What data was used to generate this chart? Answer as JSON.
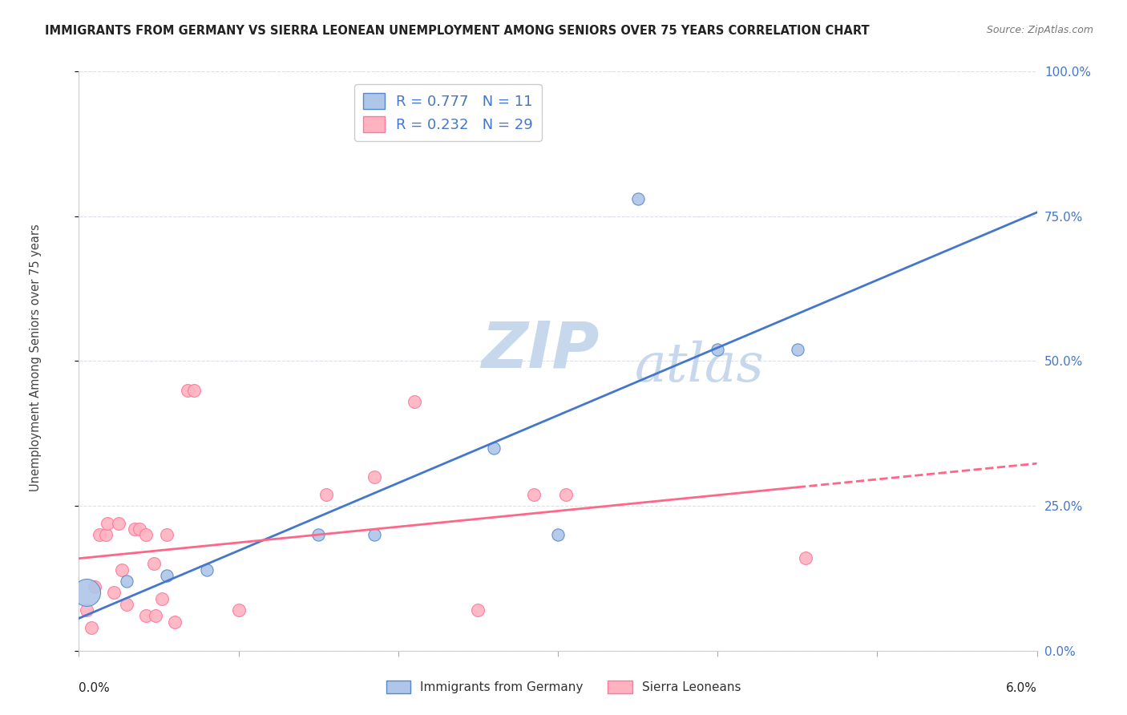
{
  "title": "IMMIGRANTS FROM GERMANY VS SIERRA LEONEAN UNEMPLOYMENT AMONG SENIORS OVER 75 YEARS CORRELATION CHART",
  "source": "Source: ZipAtlas.com",
  "ylabel": "Unemployment Among Seniors over 75 years",
  "xlim": [
    0.0,
    6.0
  ],
  "ylim": [
    0.0,
    100.0
  ],
  "yticks": [
    0.0,
    25.0,
    50.0,
    75.0,
    100.0
  ],
  "xticks": [
    0.0,
    1.0,
    2.0,
    3.0,
    4.0,
    5.0,
    6.0
  ],
  "blue_R": 0.777,
  "blue_N": 11,
  "pink_R": 0.232,
  "pink_N": 29,
  "blue_points": [
    [
      0.05,
      10.0,
      600
    ],
    [
      0.3,
      12.0,
      120
    ],
    [
      0.55,
      13.0,
      120
    ],
    [
      0.8,
      14.0,
      120
    ],
    [
      1.5,
      20.0,
      120
    ],
    [
      1.85,
      20.0,
      120
    ],
    [
      2.6,
      35.0,
      120
    ],
    [
      3.0,
      20.0,
      120
    ],
    [
      3.5,
      78.0,
      120
    ],
    [
      4.0,
      52.0,
      120
    ],
    [
      4.5,
      52.0,
      120
    ]
  ],
  "pink_points": [
    [
      0.05,
      7.0
    ],
    [
      0.08,
      4.0
    ],
    [
      0.1,
      11.0
    ],
    [
      0.13,
      20.0
    ],
    [
      0.17,
      20.0
    ],
    [
      0.22,
      10.0
    ],
    [
      0.27,
      14.0
    ],
    [
      0.3,
      8.0
    ],
    [
      0.35,
      21.0
    ],
    [
      0.38,
      21.0
    ],
    [
      0.42,
      6.0
    ],
    [
      0.48,
      6.0
    ],
    [
      0.55,
      20.0
    ],
    [
      0.6,
      5.0
    ],
    [
      0.68,
      45.0
    ],
    [
      0.72,
      45.0
    ],
    [
      1.0,
      7.0
    ],
    [
      1.55,
      27.0
    ],
    [
      1.85,
      30.0
    ],
    [
      2.1,
      43.0
    ],
    [
      2.5,
      7.0
    ],
    [
      2.85,
      27.0
    ],
    [
      3.05,
      27.0
    ],
    [
      4.55,
      16.0
    ],
    [
      0.42,
      20.0
    ],
    [
      0.47,
      15.0
    ],
    [
      0.52,
      9.0
    ],
    [
      0.18,
      22.0
    ],
    [
      0.25,
      22.0
    ]
  ],
  "blue_color": "#AEC6E8",
  "blue_edge": "#5588CC",
  "pink_color": "#FFB3C1",
  "pink_edge": "#FF7799",
  "line_blue": "#4477CC",
  "line_pink": "#FF6688",
  "tick_label_blue": "#4477CC",
  "background_color": "#FFFFFF",
  "grid_color": "#DDDDEE",
  "watermark_color": "#C8D8EC"
}
